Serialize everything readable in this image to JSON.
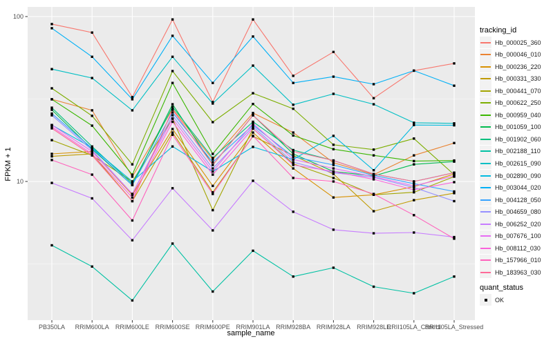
{
  "chart_data": {
    "type": "line",
    "title": "",
    "xlabel": "sample_name",
    "ylabel": "FPKM + 1",
    "y_scale": "log10",
    "legend_title": "tracking_id",
    "legend_position": "right",
    "grid": true,
    "panel_bg": "#EBEBEB",
    "grid_color": "#FFFFFF",
    "marker_color": "#000000",
    "marker_shape": "square",
    "ylim": [
      1.55,
      115
    ],
    "y_ticks": [
      {
        "label": "100",
        "value": 100
      },
      {
        "label": "10",
        "value": 10
      }
    ],
    "y_minor_ticks": [
      31.62,
      3.162
    ],
    "categories": [
      "PB350LA",
      "RRIM600LA",
      "RRIM600LE",
      "RRIM600SE",
      "RRIM600PE",
      "RRIM901LA",
      "RRIM928BA",
      "RRIM928LA",
      "RRIM928LE",
      "RRII105LA_Control",
      "RRII105LA_Stressed"
    ],
    "series": [
      {
        "name": "Hb_000025_360",
        "color": "#F8766D",
        "values": [
          90,
          80,
          32.5,
          96,
          30.3,
          96,
          43.7,
          61,
          32,
          47,
          52
        ]
      },
      {
        "name": "Hb_000046_010",
        "color": "#EA8331",
        "values": [
          31.5,
          27,
          10.7,
          27.5,
          13.6,
          26,
          19.8,
          13,
          11,
          14.4,
          17.1
        ]
      },
      {
        "name": "Hb_000236_220",
        "color": "#D89000",
        "values": [
          14.7,
          15.2,
          8.3,
          20.8,
          9.4,
          19.8,
          12,
          8,
          8.3,
          9.3,
          11.1
        ]
      },
      {
        "name": "Hb_000331_330",
        "color": "#C09B00",
        "values": [
          14.2,
          14.7,
          7.6,
          19.8,
          8.6,
          18.8,
          14.4,
          11.1,
          6.6,
          7.7,
          8.5
        ]
      },
      {
        "name": "Hb_000441_070",
        "color": "#A3A500",
        "values": [
          17.8,
          14.4,
          10,
          24,
          6.7,
          20.9,
          12.8,
          10.5,
          8.3,
          8.6,
          10.7
        ]
      },
      {
        "name": "Hb_000622_250",
        "color": "#7CAE00",
        "values": [
          36.7,
          25,
          12.7,
          46.7,
          22.9,
          34.3,
          27.6,
          16.7,
          15.6,
          18.2,
          11
        ]
      },
      {
        "name": "Hb_000959_040",
        "color": "#39B600",
        "values": [
          31.5,
          21.8,
          11,
          39.6,
          14.7,
          29.5,
          19,
          15.7,
          14.4,
          13.3,
          13.4
        ]
      },
      {
        "name": "Hb_001059_100",
        "color": "#00BB4E",
        "values": [
          27.2,
          15.7,
          9.5,
          29.4,
          12.6,
          25.2,
          14.7,
          11.5,
          10.8,
          12.7,
          13.2
        ]
      },
      {
        "name": "Hb_001902_060",
        "color": "#00BF7D",
        "values": [
          28,
          16.3,
          9.7,
          28.3,
          13.9,
          23,
          15.5,
          13.4,
          11.1,
          10,
          11.3
        ]
      },
      {
        "name": "Hb_002188_110",
        "color": "#00C1A3",
        "values": [
          4.1,
          3.05,
          1.9,
          4.2,
          2.15,
          3.8,
          2.65,
          3,
          2.3,
          2.1,
          2.65
        ]
      },
      {
        "name": "Hb_002615_090",
        "color": "#00BFC4",
        "values": [
          48,
          42.4,
          27,
          57,
          29.7,
          50.4,
          29.2,
          34,
          29.4,
          22.7,
          22.5
        ]
      },
      {
        "name": "Hb_002890_090",
        "color": "#00BAE0",
        "values": [
          22,
          16,
          10,
          16.3,
          11.5,
          16.2,
          13.6,
          18.9,
          11.7,
          22,
          21.9
        ]
      },
      {
        "name": "Hb_003044_020",
        "color": "#00B0F6",
        "values": [
          85,
          57,
          31.5,
          76.4,
          39.6,
          75.7,
          39.6,
          43.2,
          38.9,
          47,
          38.1
        ]
      },
      {
        "name": "Hb_004128_050",
        "color": "#35A2FF",
        "values": [
          25.8,
          15.9,
          9.5,
          26.2,
          13.1,
          22,
          14.1,
          12.6,
          10.9,
          9.7,
          8.7
        ]
      },
      {
        "name": "Hb_004659_080",
        "color": "#9590FF",
        "values": [
          25.2,
          15.5,
          8.4,
          25.2,
          12,
          21.5,
          13.1,
          11.3,
          10.6,
          9.2,
          7.6
        ]
      },
      {
        "name": "Hb_006252_020",
        "color": "#C77CFF",
        "values": [
          9.8,
          7.9,
          4.4,
          9.1,
          5.05,
          10.1,
          6.55,
          5.1,
          4.85,
          4.9,
          4.6
        ]
      },
      {
        "name": "Hb_007676_100",
        "color": "#E76BF3",
        "values": [
          22,
          15.2,
          8.4,
          24.1,
          11.5,
          22.5,
          13.6,
          12,
          10.7,
          9.4,
          10.8
        ]
      },
      {
        "name": "Hb_008112_030",
        "color": "#FA62DB",
        "values": [
          21.4,
          14.7,
          8,
          23,
          11,
          21,
          12.6,
          11.5,
          10.3,
          8.9,
          9.9
        ]
      },
      {
        "name": "Hb_157966_010",
        "color": "#FF62BC",
        "values": [
          13.5,
          11,
          5.8,
          19.2,
          8.4,
          18.9,
          10.5,
          10,
          8.4,
          6.25,
          4.5
        ]
      },
      {
        "name": "Hb_183963_030",
        "color": "#FF6A98",
        "values": [
          21,
          14.4,
          7.6,
          27.2,
          12.6,
          25.2,
          15.2,
          13.4,
          11.1,
          10,
          11.3
        ]
      }
    ],
    "quant_legend": {
      "title": "quant_status",
      "items": [
        {
          "label": "OK"
        }
      ]
    }
  }
}
